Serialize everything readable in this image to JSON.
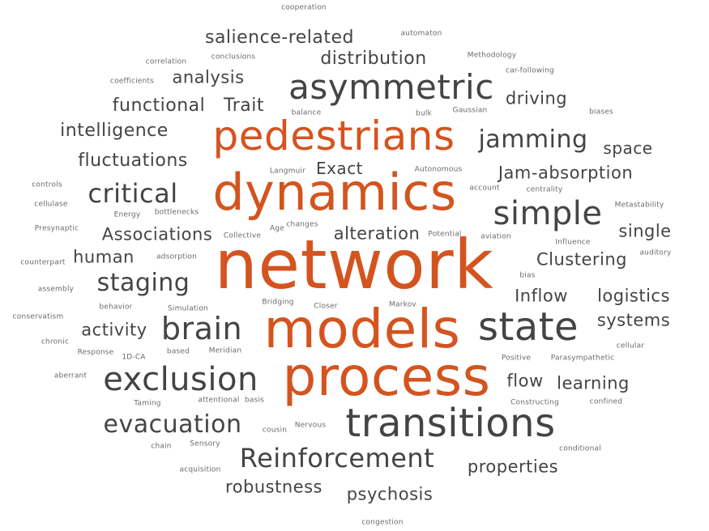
{
  "word_cloud": {
    "colors": {
      "highlight": "#d4541f",
      "primary": "#444444",
      "minor": "#6a6a6a"
    },
    "words": [
      {
        "text": "network",
        "tier": "hi",
        "weight": 1.0
      },
      {
        "text": "models",
        "tier": "hi",
        "weight": 0.82
      },
      {
        "text": "process",
        "tier": "hi",
        "weight": 0.8
      },
      {
        "text": "dynamics",
        "tier": "hi",
        "weight": 0.78
      },
      {
        "text": "pedestrians",
        "tier": "hi",
        "weight": 0.62
      },
      {
        "text": "transitions",
        "tier": "lo",
        "weight": 0.6
      },
      {
        "text": "state",
        "tier": "lo",
        "weight": 0.58
      },
      {
        "text": "asymmetric",
        "tier": "lo",
        "weight": 0.52
      },
      {
        "text": "simple",
        "tier": "lo",
        "weight": 0.5
      },
      {
        "text": "exclusion",
        "tier": "lo",
        "weight": 0.5
      },
      {
        "text": "brain",
        "tier": "lo",
        "weight": 0.48
      },
      {
        "text": "Reinforcement",
        "tier": "lo",
        "weight": 0.4
      },
      {
        "text": "critical",
        "tier": "lo",
        "weight": 0.4
      },
      {
        "text": "jamming",
        "tier": "lo",
        "weight": 0.38
      },
      {
        "text": "evacuation",
        "tier": "lo",
        "weight": 0.37
      },
      {
        "text": "staging",
        "tier": "lo",
        "weight": 0.37
      },
      {
        "text": "salience-related",
        "tier": "lo",
        "weight": 0.27
      },
      {
        "text": "distribution",
        "tier": "lo",
        "weight": 0.27
      },
      {
        "text": "analysis",
        "tier": "lo",
        "weight": 0.26
      },
      {
        "text": "functional",
        "tier": "lo",
        "weight": 0.27
      },
      {
        "text": "Trait",
        "tier": "lo",
        "weight": 0.27
      },
      {
        "text": "driving",
        "tier": "lo",
        "weight": 0.26
      },
      {
        "text": "intelligence",
        "tier": "lo",
        "weight": 0.27
      },
      {
        "text": "fluctuations",
        "tier": "lo",
        "weight": 0.28
      },
      {
        "text": "Exact",
        "tier": "lo",
        "weight": 0.25
      },
      {
        "text": "space",
        "tier": "lo",
        "weight": 0.25
      },
      {
        "text": "Jam-absorption",
        "tier": "lo",
        "weight": 0.27
      },
      {
        "text": "Associations",
        "tier": "lo",
        "weight": 0.27
      },
      {
        "text": "alteration",
        "tier": "lo",
        "weight": 0.27
      },
      {
        "text": "single",
        "tier": "lo",
        "weight": 0.26
      },
      {
        "text": "human",
        "tier": "lo",
        "weight": 0.26
      },
      {
        "text": "Clustering",
        "tier": "lo",
        "weight": 0.27
      },
      {
        "text": "Inflow",
        "tier": "lo",
        "weight": 0.26
      },
      {
        "text": "logistics",
        "tier": "lo",
        "weight": 0.26
      },
      {
        "text": "activity",
        "tier": "lo",
        "weight": 0.26
      },
      {
        "text": "systems",
        "tier": "lo",
        "weight": 0.26
      },
      {
        "text": "flow",
        "tier": "lo",
        "weight": 0.26
      },
      {
        "text": "learning",
        "tier": "lo",
        "weight": 0.26
      },
      {
        "text": "properties",
        "tier": "lo",
        "weight": 0.26
      },
      {
        "text": "robustness",
        "tier": "lo",
        "weight": 0.26
      },
      {
        "text": "psychosis",
        "tier": "lo",
        "weight": 0.26
      },
      {
        "text": "cooperation",
        "tier": "tiny",
        "weight": 0.1
      },
      {
        "text": "automaton",
        "tier": "tiny",
        "weight": 0.1
      },
      {
        "text": "Methodology",
        "tier": "tiny",
        "weight": 0.1
      },
      {
        "text": "correlation",
        "tier": "tiny",
        "weight": 0.1
      },
      {
        "text": "conclusions",
        "tier": "tiny",
        "weight": 0.1
      },
      {
        "text": "car-following",
        "tier": "tiny",
        "weight": 0.1
      },
      {
        "text": "coefficients",
        "tier": "tiny",
        "weight": 0.1
      },
      {
        "text": "balance",
        "tier": "tiny",
        "weight": 0.1
      },
      {
        "text": "bulk",
        "tier": "tiny",
        "weight": 0.1
      },
      {
        "text": "Gaussian",
        "tier": "tiny",
        "weight": 0.1
      },
      {
        "text": "biases",
        "tier": "tiny",
        "weight": 0.1
      },
      {
        "text": "Langmuir",
        "tier": "tiny",
        "weight": 0.1
      },
      {
        "text": "Autonomous",
        "tier": "tiny",
        "weight": 0.1
      },
      {
        "text": "controls",
        "tier": "tiny",
        "weight": 0.1
      },
      {
        "text": "account",
        "tier": "tiny",
        "weight": 0.1
      },
      {
        "text": "centrality",
        "tier": "tiny",
        "weight": 0.1
      },
      {
        "text": "cellulase",
        "tier": "tiny",
        "weight": 0.1
      },
      {
        "text": "Energy",
        "tier": "tiny",
        "weight": 0.1
      },
      {
        "text": "bottlenecks",
        "tier": "tiny",
        "weight": 0.1
      },
      {
        "text": "Metastability",
        "tier": "tiny",
        "weight": 0.1
      },
      {
        "text": "Presynaptic",
        "tier": "tiny",
        "weight": 0.1
      },
      {
        "text": "Collective",
        "tier": "tiny",
        "weight": 0.1
      },
      {
        "text": "Age",
        "tier": "tiny",
        "weight": 0.1
      },
      {
        "text": "changes",
        "tier": "tiny",
        "weight": 0.1
      },
      {
        "text": "Potential",
        "tier": "tiny",
        "weight": 0.1
      },
      {
        "text": "aviation",
        "tier": "tiny",
        "weight": 0.1
      },
      {
        "text": "Influence",
        "tier": "tiny",
        "weight": 0.1
      },
      {
        "text": "auditory",
        "tier": "tiny",
        "weight": 0.1
      },
      {
        "text": "counterpart",
        "tier": "tiny",
        "weight": 0.1
      },
      {
        "text": "adsorption",
        "tier": "tiny",
        "weight": 0.1
      },
      {
        "text": "bias",
        "tier": "tiny",
        "weight": 0.1
      },
      {
        "text": "assembly",
        "tier": "tiny",
        "weight": 0.1
      },
      {
        "text": "behavior",
        "tier": "tiny",
        "weight": 0.1
      },
      {
        "text": "Simulation",
        "tier": "tiny",
        "weight": 0.1
      },
      {
        "text": "Bridging",
        "tier": "tiny",
        "weight": 0.1
      },
      {
        "text": "Closer",
        "tier": "tiny",
        "weight": 0.1
      },
      {
        "text": "Markov",
        "tier": "tiny",
        "weight": 0.1
      },
      {
        "text": "conservatism",
        "tier": "tiny",
        "weight": 0.1
      },
      {
        "text": "chronic",
        "tier": "tiny",
        "weight": 0.1
      },
      {
        "text": "cellular",
        "tier": "tiny",
        "weight": 0.1
      },
      {
        "text": "Response",
        "tier": "tiny",
        "weight": 0.1
      },
      {
        "text": "1D-CA",
        "tier": "tiny",
        "weight": 0.1
      },
      {
        "text": "based",
        "tier": "tiny",
        "weight": 0.1
      },
      {
        "text": "Meridian",
        "tier": "tiny",
        "weight": 0.1
      },
      {
        "text": "Positive",
        "tier": "tiny",
        "weight": 0.1
      },
      {
        "text": "Parasympathetic",
        "tier": "tiny",
        "weight": 0.1
      },
      {
        "text": "aberrant",
        "tier": "tiny",
        "weight": 0.1
      },
      {
        "text": "attentional",
        "tier": "tiny",
        "weight": 0.1
      },
      {
        "text": "basis",
        "tier": "tiny",
        "weight": 0.1
      },
      {
        "text": "Constructing",
        "tier": "tiny",
        "weight": 0.1
      },
      {
        "text": "confined",
        "tier": "tiny",
        "weight": 0.1
      },
      {
        "text": "Taming",
        "tier": "tiny",
        "weight": 0.1
      },
      {
        "text": "cousin",
        "tier": "tiny",
        "weight": 0.1
      },
      {
        "text": "Nervous",
        "tier": "tiny",
        "weight": 0.1
      },
      {
        "text": "chain",
        "tier": "tiny",
        "weight": 0.1
      },
      {
        "text": "Sensory",
        "tier": "tiny",
        "weight": 0.1
      },
      {
        "text": "conditional",
        "tier": "tiny",
        "weight": 0.1
      },
      {
        "text": "acquisition",
        "tier": "tiny",
        "weight": 0.1
      },
      {
        "text": "congestion",
        "tier": "tiny",
        "weight": 0.1
      }
    ]
  }
}
